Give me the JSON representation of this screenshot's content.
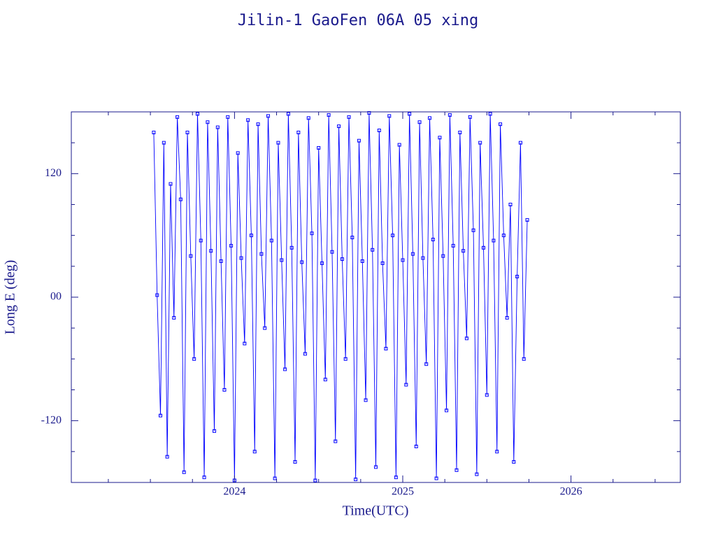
{
  "chart_data": {
    "type": "line",
    "title": "Jilin-1 GaoFen 06A 05 xing",
    "x_label": "Time(UTC)",
    "y_label": "Long E (deg)",
    "xlim": [
      2023.03,
      2026.65
    ],
    "ylim": [
      -180,
      180
    ],
    "xticks": [
      2024,
      2025,
      2026
    ],
    "xminorticks": [
      2023.25,
      2023.5,
      2023.75,
      2024.25,
      2024.5,
      2024.75,
      2025.25,
      2025.5,
      2025.75,
      2026.25,
      2026.5
    ],
    "yticks": [
      {
        "value": 120,
        "label": "120"
      },
      {
        "value": 0,
        "label": "00"
      },
      {
        "value": -120,
        "label": "-120"
      }
    ],
    "yminorticks": [
      -150,
      -90,
      -60,
      -30,
      30,
      60,
      90,
      150
    ],
    "axis_color": "#1a1a8c",
    "series": [
      {
        "color": "#0000ff",
        "x": [
          2023.52,
          2023.54,
          2023.56,
          2023.58,
          2023.6,
          2023.62,
          2023.64,
          2023.66,
          2023.68,
          2023.7,
          2023.72,
          2023.74,
          2023.76,
          2023.78,
          2023.8,
          2023.82,
          2023.84,
          2023.86,
          2023.88,
          2023.9,
          2023.92,
          2023.94,
          2023.96,
          2023.98,
          2024.0,
          2024.02,
          2024.04,
          2024.06,
          2024.08,
          2024.1,
          2024.12,
          2024.14,
          2024.16,
          2024.18,
          2024.2,
          2024.22,
          2024.24,
          2024.26,
          2024.28,
          2024.3,
          2024.32,
          2024.34,
          2024.36,
          2024.38,
          2024.4,
          2024.42,
          2024.44,
          2024.46,
          2024.48,
          2024.5,
          2024.52,
          2024.54,
          2024.56,
          2024.58,
          2024.6,
          2024.62,
          2024.64,
          2024.66,
          2024.68,
          2024.7,
          2024.72,
          2024.74,
          2024.76,
          2024.78,
          2024.8,
          2024.82,
          2024.84,
          2024.86,
          2024.88,
          2024.9,
          2024.92,
          2024.94,
          2024.96,
          2024.98,
          2025.0,
          2025.02,
          2025.04,
          2025.06,
          2025.08,
          2025.1,
          2025.12,
          2025.14,
          2025.16,
          2025.18,
          2025.2,
          2025.22,
          2025.24,
          2025.26,
          2025.28,
          2025.3,
          2025.32,
          2025.34,
          2025.36,
          2025.38,
          2025.4,
          2025.42,
          2025.44,
          2025.46,
          2025.48,
          2025.5,
          2025.52,
          2025.54,
          2025.56,
          2025.58,
          2025.6,
          2025.62,
          2025.64,
          2025.66,
          2025.68,
          2025.7,
          2025.72,
          2025.74
        ],
        "values": [
          160,
          2,
          -115,
          150,
          -155,
          110,
          -20,
          175,
          95,
          -170,
          160,
          40,
          -60,
          178,
          55,
          -175,
          170,
          45,
          -130,
          165,
          35,
          -90,
          175,
          50,
          -178,
          140,
          38,
          -45,
          172,
          60,
          -150,
          168,
          42,
          -30,
          176,
          55,
          -176,
          150,
          36,
          -70,
          178,
          48,
          -160,
          160,
          34,
          -55,
          174,
          62,
          -178,
          145,
          33,
          -80,
          177,
          44,
          -140,
          166,
          37,
          -60,
          175,
          58,
          -177,
          152,
          35,
          -100,
          179,
          46,
          -165,
          162,
          33,
          -50,
          176,
          60,
          -175,
          148,
          36,
          -85,
          178,
          42,
          -145,
          170,
          38,
          -65,
          174,
          56,
          -176,
          155,
          40,
          -110,
          177,
          50,
          -168,
          160,
          45,
          -40,
          175,
          65,
          -172,
          150,
          48,
          -95,
          178,
          55,
          -150,
          168,
          60,
          -20,
          90,
          -160,
          20,
          150,
          -60,
          75
        ]
      }
    ]
  }
}
